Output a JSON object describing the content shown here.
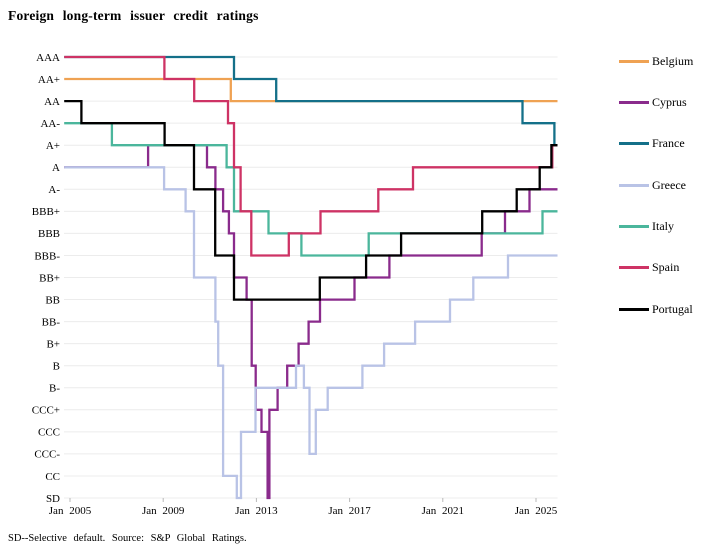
{
  "title": "Foreign long-term issuer credit ratings",
  "footnote": "SD--Selective default. Source: S&P Global Ratings.",
  "chart_data": {
    "type": "line",
    "subtype": "step",
    "title": "Foreign long-term issuer credit ratings",
    "grid": true,
    "legend_position": "right",
    "y_axis": {
      "label": "",
      "categories_top_to_bottom": [
        "AAA",
        "AA+",
        "AA",
        "AA-",
        "A+",
        "A",
        "A-",
        "BBB+",
        "BBB",
        "BBB-",
        "BB+",
        "BB",
        "BB-",
        "B+",
        "B",
        "B-",
        "CCC+",
        "CCC",
        "CCC-",
        "CC",
        "SD"
      ]
    },
    "x_axis": {
      "tick_labels": [
        "Jan 2005",
        "Jan 2009",
        "Jan 2013",
        "Jan 2017",
        "Jan 2021",
        "Jan 2025"
      ],
      "tick_years": [
        2005,
        2009,
        2013,
        2017,
        2021,
        2025
      ],
      "range_years": [
        2004.75,
        2025.92
      ]
    },
    "series": [
      {
        "name": "Belgium",
        "color": "#EFA253",
        "steps": [
          [
            2004.75,
            "AA+"
          ],
          [
            2011.9,
            "AA"
          ]
        ]
      },
      {
        "name": "Cyprus",
        "color": "#8A2B8C",
        "steps": [
          [
            2004.75,
            "A"
          ],
          [
            2008.35,
            "A+"
          ],
          [
            2010.88,
            "A"
          ],
          [
            2011.24,
            "A-"
          ],
          [
            2011.57,
            "BBB+"
          ],
          [
            2011.82,
            "BBB"
          ],
          [
            2012.04,
            "BB+"
          ],
          [
            2012.58,
            "BB"
          ],
          [
            2012.8,
            "B"
          ],
          [
            2012.97,
            "CCC+"
          ],
          [
            2013.22,
            "CCC"
          ],
          [
            2013.48,
            "SD"
          ],
          [
            2013.56,
            "CCC+"
          ],
          [
            2013.91,
            "B-"
          ],
          [
            2014.32,
            "B"
          ],
          [
            2014.81,
            "B+"
          ],
          [
            2015.24,
            "BB-"
          ],
          [
            2015.73,
            "BB"
          ],
          [
            2017.21,
            "BB+"
          ],
          [
            2018.71,
            "BBB-"
          ],
          [
            2022.67,
            "BBB"
          ],
          [
            2023.67,
            "BBB+"
          ],
          [
            2024.72,
            "A-"
          ]
        ]
      },
      {
        "name": "France",
        "color": "#147089",
        "steps": [
          [
            2004.75,
            "AAA"
          ],
          [
            2012.04,
            "AA+"
          ],
          [
            2013.85,
            "AA"
          ],
          [
            2024.42,
            "AA-"
          ],
          [
            2025.79,
            "A+"
          ]
        ]
      },
      {
        "name": "Greece",
        "color": "#B9C3E6",
        "steps": [
          [
            2004.75,
            "A"
          ],
          [
            2009.04,
            "A-"
          ],
          [
            2009.96,
            "BBB+"
          ],
          [
            2010.32,
            "BB+"
          ],
          [
            2011.24,
            "BB-"
          ],
          [
            2011.36,
            "B"
          ],
          [
            2011.57,
            "CC"
          ],
          [
            2012.16,
            "SD"
          ],
          [
            2012.34,
            "CCC"
          ],
          [
            2012.96,
            "B-"
          ],
          [
            2014.7,
            "B"
          ],
          [
            2015.04,
            "B-"
          ],
          [
            2015.28,
            "CCC-"
          ],
          [
            2015.55,
            "CCC+"
          ],
          [
            2016.06,
            "B-"
          ],
          [
            2017.55,
            "B"
          ],
          [
            2018.48,
            "B+"
          ],
          [
            2019.81,
            "BB-"
          ],
          [
            2021.31,
            "BB"
          ],
          [
            2022.31,
            "BB+"
          ],
          [
            2023.8,
            "BBB-"
          ]
        ]
      },
      {
        "name": "Italy",
        "color": "#4BB69C",
        "steps": [
          [
            2004.75,
            "AA-"
          ],
          [
            2006.8,
            "A+"
          ],
          [
            2011.72,
            "A"
          ],
          [
            2012.04,
            "BBB+"
          ],
          [
            2013.52,
            "BBB"
          ],
          [
            2014.93,
            "BBB-"
          ],
          [
            2017.82,
            "BBB"
          ],
          [
            2025.28,
            "BBB+"
          ]
        ]
      },
      {
        "name": "Spain",
        "color": "#CE3365",
        "steps": [
          [
            2004.75,
            "AAA"
          ],
          [
            2009.05,
            "AA+"
          ],
          [
            2010.33,
            "AA"
          ],
          [
            2011.78,
            "AA-"
          ],
          [
            2012.04,
            "A"
          ],
          [
            2012.32,
            "BBB+"
          ],
          [
            2012.78,
            "BBB-"
          ],
          [
            2014.39,
            "BBB"
          ],
          [
            2015.75,
            "BBB+"
          ],
          [
            2018.23,
            "A-"
          ],
          [
            2019.72,
            "A"
          ],
          [
            2025.7,
            "A+"
          ]
        ]
      },
      {
        "name": "Portugal",
        "color": "#000000",
        "steps": [
          [
            2004.75,
            "AA"
          ],
          [
            2005.49,
            "AA-"
          ],
          [
            2009.06,
            "A+"
          ],
          [
            2010.32,
            "A-"
          ],
          [
            2011.23,
            "BBB-"
          ],
          [
            2012.04,
            "BB"
          ],
          [
            2015.72,
            "BB+"
          ],
          [
            2017.71,
            "BBB-"
          ],
          [
            2019.21,
            "BBB"
          ],
          [
            2022.69,
            "BBB+"
          ],
          [
            2024.17,
            "A-"
          ],
          [
            2025.16,
            "A"
          ],
          [
            2025.66,
            "A+"
          ]
        ]
      }
    ]
  }
}
